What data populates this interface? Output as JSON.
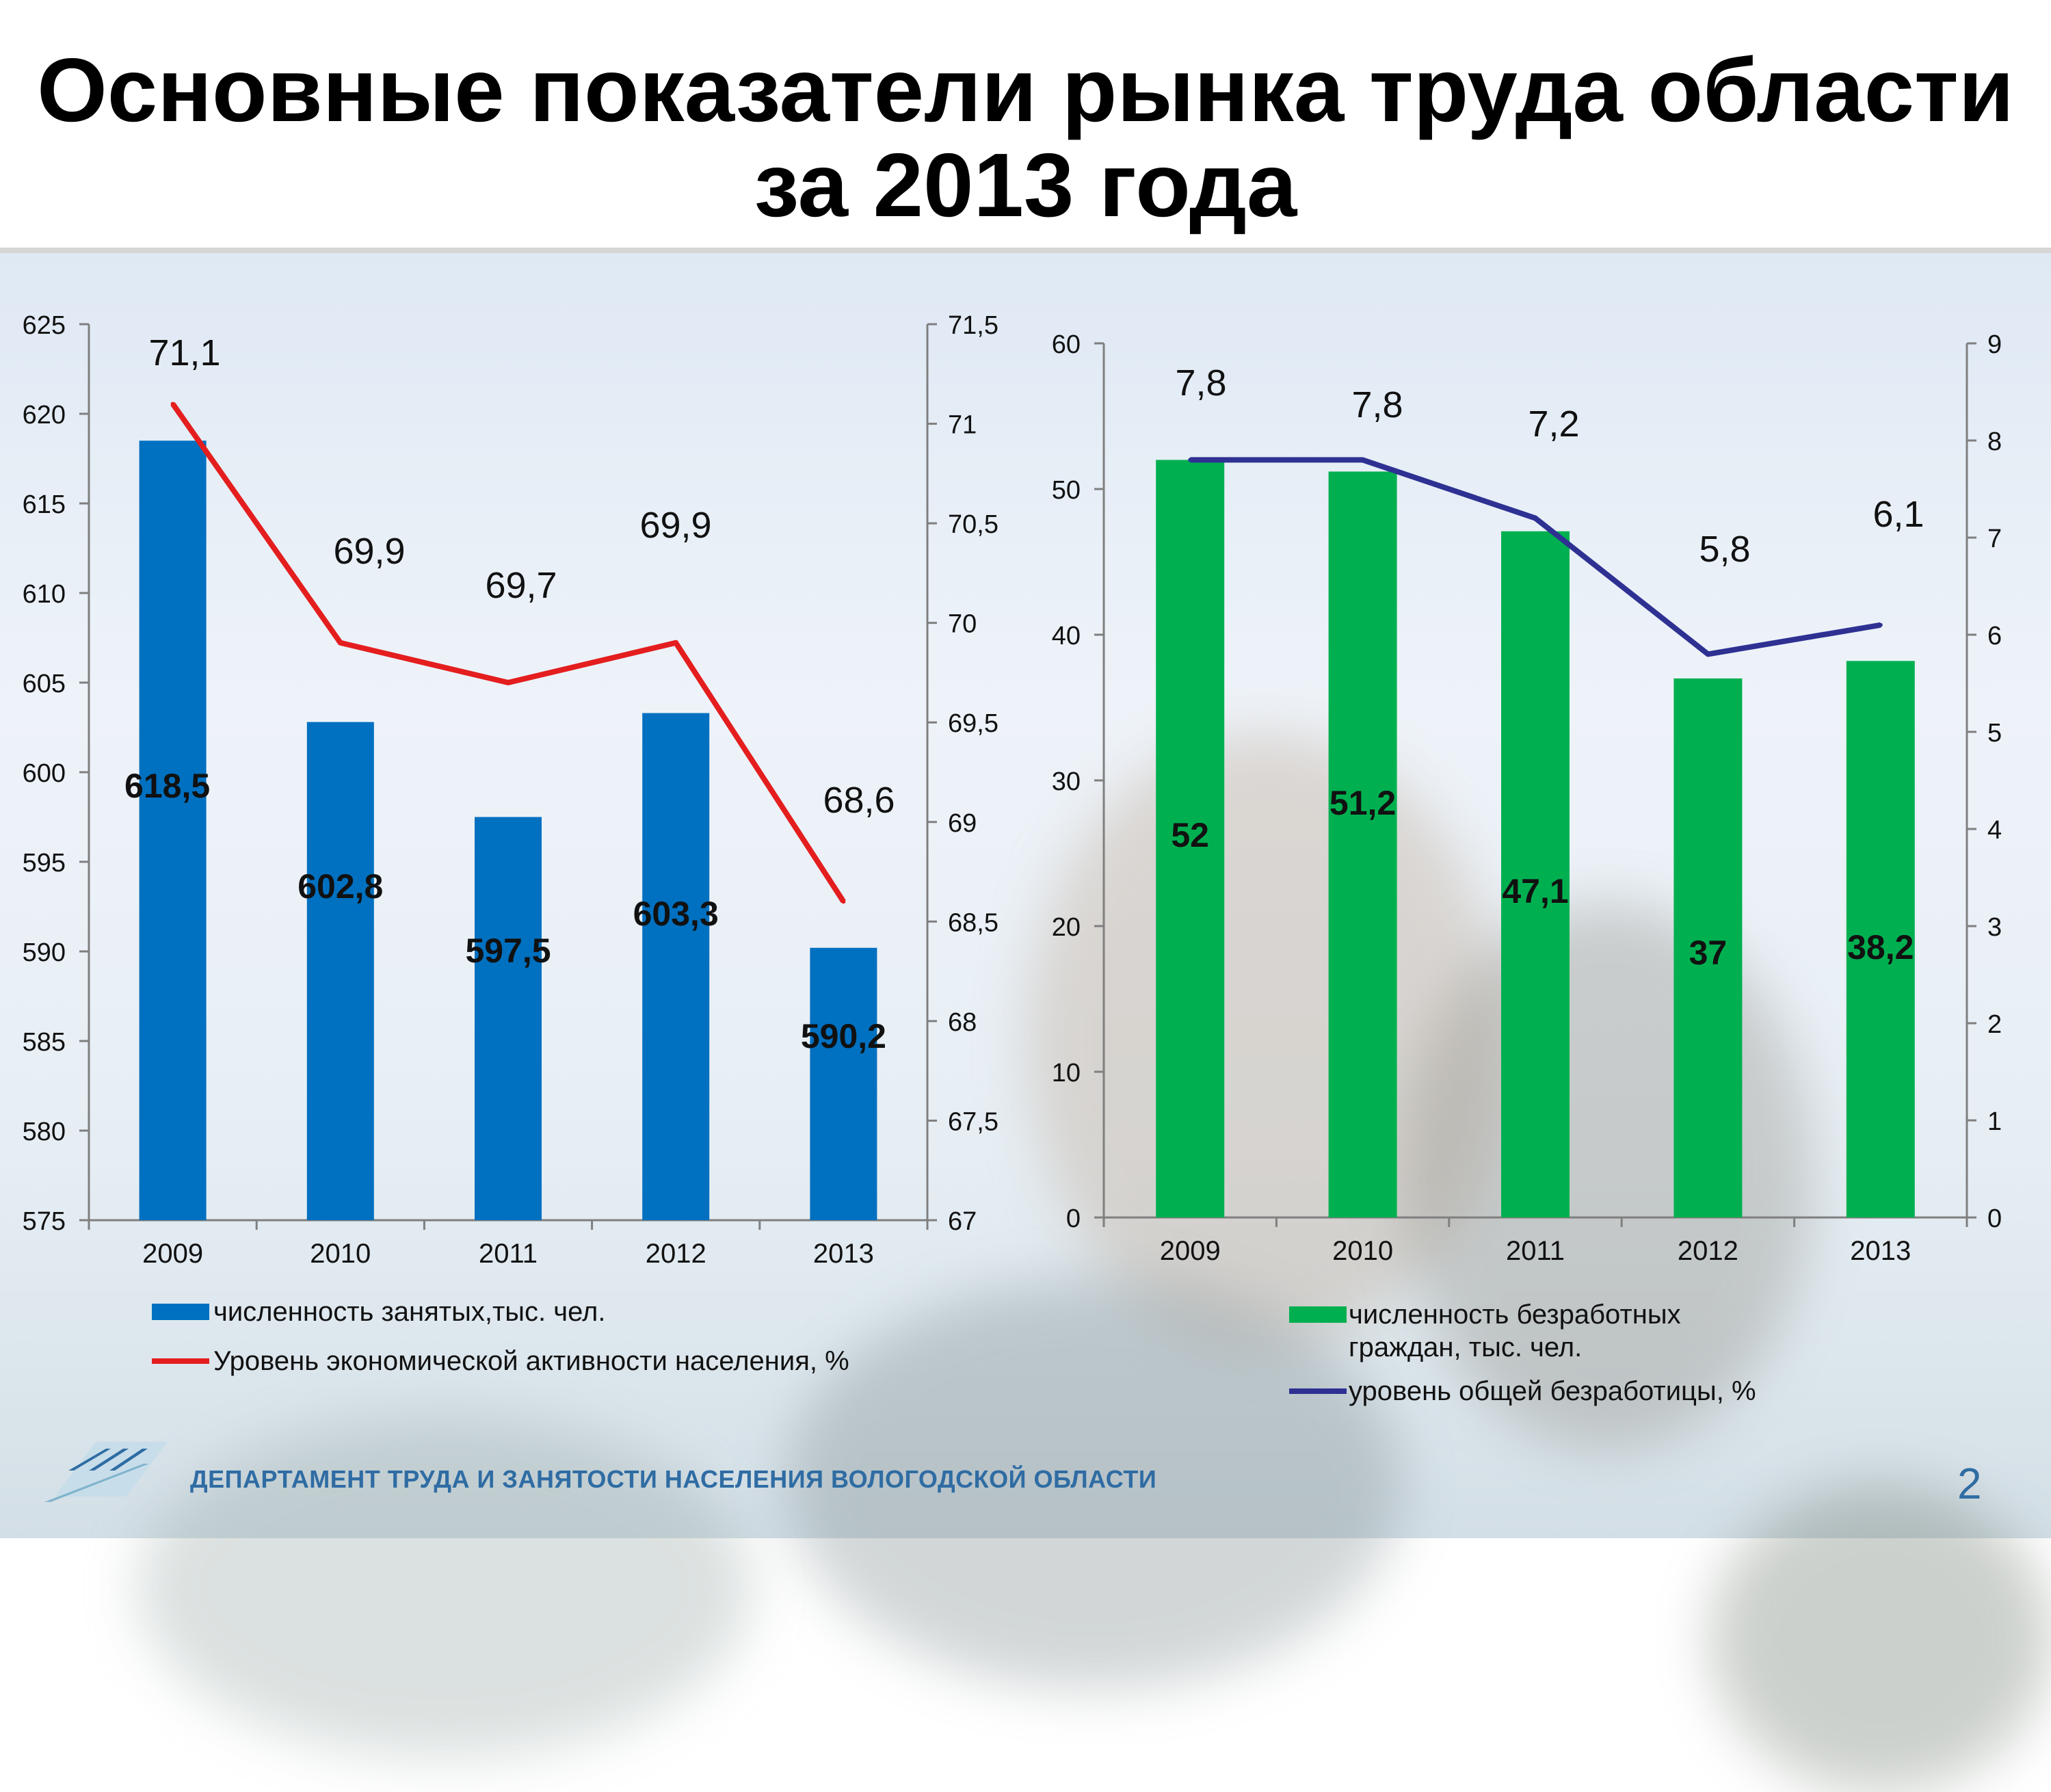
{
  "title": {
    "line1": "Основные показатели рынка труда области",
    "line2": "за 2013 года"
  },
  "footer": {
    "department": "ДЕПАРТАМЕНТ ТРУДА И ЗАНЯТОСТИ НАСЕЛЕНИЯ ВОЛОГОДСКОЙ ОБЛАСТИ",
    "page_number": "2"
  },
  "colors": {
    "employed_bar": "#0070c0",
    "activity_line": "#e41e1e",
    "unemployed_bar": "#00b050",
    "unemployment_line": "#2e3192",
    "footer_text": "#2f6ca3"
  },
  "chart_data": [
    {
      "type": "bar",
      "categories": [
        "2009",
        "2010",
        "2011",
        "2012",
        "2013"
      ],
      "y_left": {
        "min": 575,
        "max": 625,
        "step": 5,
        "ticks": [
          "575",
          "580",
          "585",
          "590",
          "595",
          "600",
          "605",
          "610",
          "615",
          "620",
          "625"
        ]
      },
      "y_right": {
        "min": 67,
        "max": 71.5,
        "step": 0.5,
        "ticks": [
          "67",
          "67,5",
          "68",
          "68,5",
          "69",
          "69,5",
          "70",
          "70,5",
          "71",
          "71,5"
        ]
      },
      "series": [
        {
          "name": "численность занятых,тыс. чел.",
          "kind": "bar",
          "axis": "left",
          "values": [
            618.5,
            602.8,
            597.5,
            603.3,
            590.2
          ],
          "labels": [
            "618,5",
            "602,8",
            "597,5",
            "603,3",
            "590,2"
          ]
        },
        {
          "name": "Уровень экономической активности населения, %",
          "kind": "line",
          "axis": "right",
          "values": [
            71.1,
            69.9,
            69.7,
            69.9,
            68.6
          ],
          "labels": [
            "71,1",
            "69,9",
            "69,7",
            "69,9",
            "68,6"
          ]
        }
      ],
      "grid": false,
      "legend": "bottom"
    },
    {
      "type": "bar",
      "categories": [
        "2009",
        "2010",
        "2011",
        "2012",
        "2013"
      ],
      "y_left": {
        "min": 0,
        "max": 60,
        "step": 10,
        "ticks": [
          "0",
          "10",
          "20",
          "30",
          "40",
          "50",
          "60"
        ]
      },
      "y_right": {
        "min": 0,
        "max": 9,
        "step": 1,
        "ticks": [
          "0",
          "1",
          "2",
          "3",
          "4",
          "5",
          "6",
          "7",
          "8",
          "9"
        ]
      },
      "series": [
        {
          "name": "численность безработных граждан, тыс. чел.",
          "legend_lines": [
            "численность безработных",
            "граждан, тыс. чел."
          ],
          "kind": "bar",
          "axis": "left",
          "values": [
            52,
            51.2,
            47.1,
            37,
            38.2
          ],
          "labels": [
            "52",
            "51,2",
            "47,1",
            "37",
            "38,2"
          ]
        },
        {
          "name": "уровень общей безработицы, %",
          "kind": "line",
          "axis": "right",
          "values": [
            7.8,
            7.8,
            7.2,
            5.8,
            6.1
          ],
          "labels": [
            "7,8",
            "7,8",
            "7,2",
            "5,8",
            "6,1"
          ]
        }
      ],
      "grid": false,
      "legend": "bottom"
    }
  ]
}
